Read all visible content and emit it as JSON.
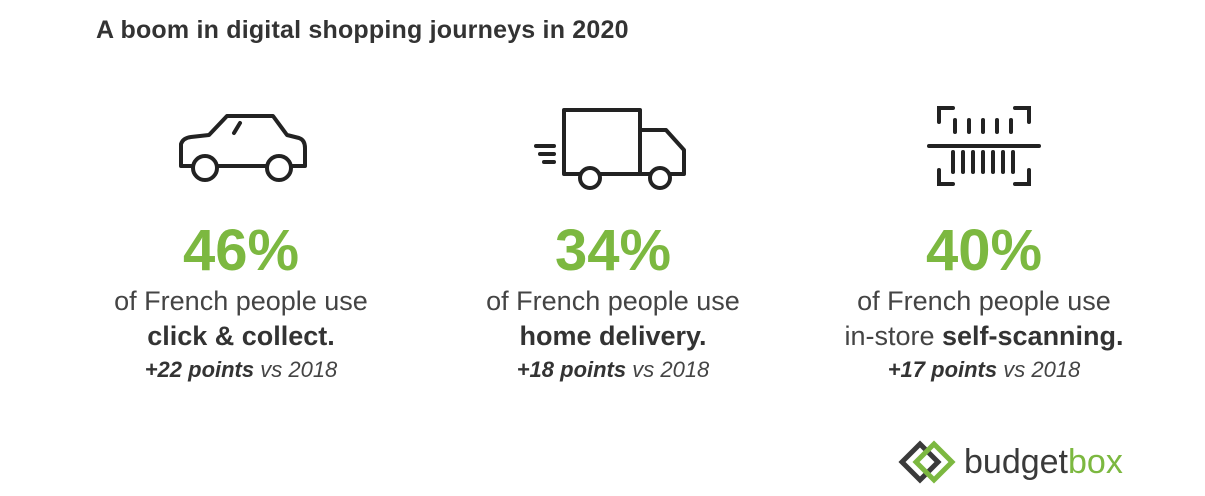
{
  "title": "A boom in digital shopping journeys in 2020",
  "colors": {
    "accent": "#7cb840",
    "text": "#3a3a3a"
  },
  "stats": [
    {
      "icon": "car-icon",
      "percent": "46%",
      "line1": "of French people use",
      "line2_prefix": "",
      "line2_bold": "click & collect.",
      "change_bold": "+22 points",
      "change_rest": " vs 2018"
    },
    {
      "icon": "delivery-truck-icon",
      "percent": "34%",
      "line1": "of French people use",
      "line2_prefix": "",
      "line2_bold": "home delivery.",
      "change_bold": "+18 points",
      "change_rest": " vs 2018"
    },
    {
      "icon": "barcode-scanner-icon",
      "percent": "40%",
      "line1": "of French people use",
      "line2_prefix": "in-store ",
      "line2_bold": "self-scanning.",
      "change_bold": "+17 points",
      "change_rest": " vs 2018"
    }
  ],
  "logo": {
    "part1": "budget",
    "part2": "box"
  }
}
